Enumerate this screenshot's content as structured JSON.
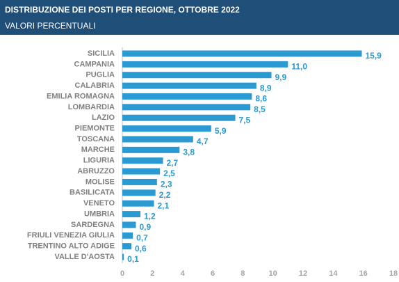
{
  "chart_data": {
    "type": "barh",
    "title": "DISTRIBUZIONE DEI POSTI PER REGIONE, OTTOBRE 2022",
    "subtitle": "VALORI PERCENTUALI",
    "categories": [
      "SICILIA",
      "CAMPANIA",
      "PUGLIA",
      "CALABRIA",
      "EMILIA ROMAGNA",
      "LOMBARDIA",
      "LAZIO",
      "PIEMONTE",
      "TOSCANA",
      "MARCHE",
      "LIGURIA",
      "ABRUZZO",
      "MOLISE",
      "BASILICATA",
      "VENETO",
      "UMBRIA",
      "SARDEGNA",
      "FRIULI VENEZIA GIULIA",
      "TRENTINO ALTO ADIGE",
      "VALLE D'AOSTA"
    ],
    "values": [
      15.9,
      11.0,
      9.9,
      8.9,
      8.6,
      8.5,
      7.5,
      5.9,
      4.7,
      3.8,
      2.7,
      2.5,
      2.3,
      2.2,
      2.1,
      1.2,
      0.9,
      0.7,
      0.6,
      0.1
    ],
    "value_labels": [
      "15,9",
      "11,0",
      "9,9",
      "8,9",
      "8,6",
      "8,5",
      "7,5",
      "5,9",
      "4,7",
      "3,8",
      "2,7",
      "2,5",
      "2,3",
      "2,2",
      "2,1",
      "1,2",
      "0,9",
      "0,7",
      "0,6",
      "0,1"
    ],
    "color": "#2b9ad2",
    "xlim": [
      0,
      18
    ],
    "xticks": [
      0,
      2,
      4,
      6,
      8,
      10,
      12,
      14,
      16,
      18
    ],
    "grid": false
  }
}
